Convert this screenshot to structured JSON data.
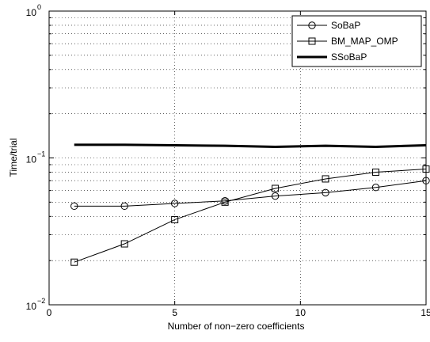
{
  "chart_data": {
    "type": "line",
    "title": "",
    "xlabel": "Number of non−zero coefficients",
    "ylabel": "Time/trial",
    "xlim": [
      0,
      15
    ],
    "ylim": [
      0.01,
      1
    ],
    "yscale": "log",
    "grid": true,
    "legend_position": "top-right",
    "x_ticks": [
      {
        "value": 0,
        "label": "0"
      },
      {
        "value": 5,
        "label": "5"
      },
      {
        "value": 10,
        "label": "10"
      },
      {
        "value": 15,
        "label": "15"
      }
    ],
    "y_ticks": [
      {
        "value": 0.01,
        "base": "10",
        "exp": "−2"
      },
      {
        "value": 0.1,
        "base": "10",
        "exp": "−1"
      },
      {
        "value": 1,
        "base": "10",
        "exp": "0"
      }
    ],
    "series": [
      {
        "name": "SoBaP",
        "marker": "circle",
        "line_width": 1,
        "color": "#000000",
        "x": [
          1,
          3,
          5,
          7,
          9,
          11,
          13,
          15
        ],
        "y": [
          0.047,
          0.047,
          0.049,
          0.051,
          0.055,
          0.058,
          0.063,
          0.07
        ]
      },
      {
        "name": "BM_MAP_OMP",
        "marker": "square",
        "line_width": 1,
        "color": "#000000",
        "x": [
          1,
          3,
          5,
          7,
          9,
          11,
          13,
          15
        ],
        "y": [
          0.0195,
          0.026,
          0.038,
          0.05,
          0.062,
          0.072,
          0.08,
          0.084
        ]
      },
      {
        "name": "SSoBaP",
        "marker": "none",
        "line_width": 3,
        "color": "#000000",
        "x": [
          1,
          3,
          5,
          7,
          9,
          11,
          13,
          15
        ],
        "y": [
          0.123,
          0.123,
          0.122,
          0.121,
          0.119,
          0.121,
          0.119,
          0.122
        ]
      }
    ]
  }
}
